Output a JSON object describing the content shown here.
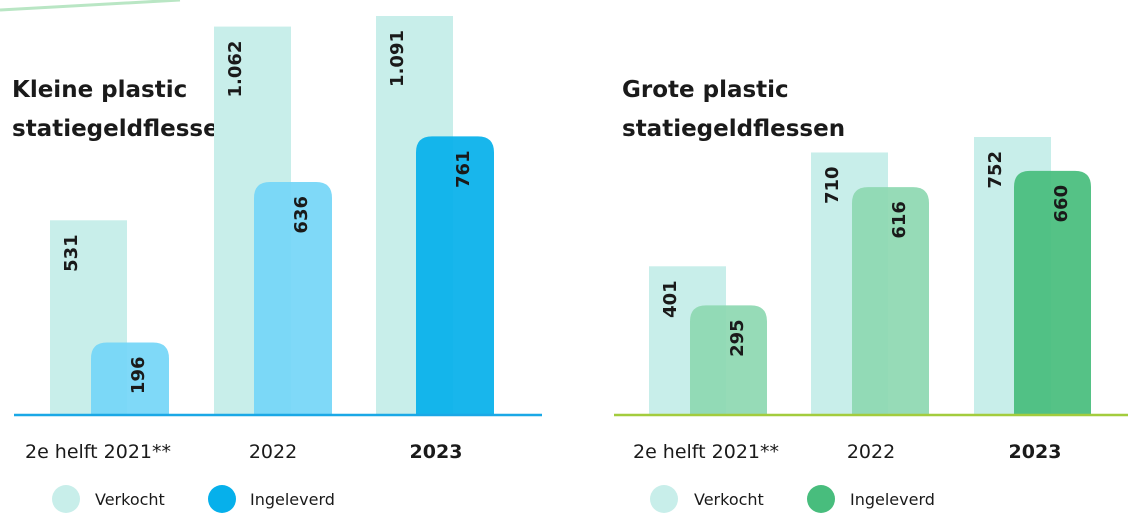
{
  "colors": {
    "background": "#ffffff",
    "verkocht": "#c8eeea",
    "left_ingeleverd_light": "#75d6f7",
    "left_ingeleverd_bold": "#06b0eb",
    "left_baseline": "#1aa8e6",
    "right_ingeleverd_light": "#8ed8b2",
    "right_ingeleverd_bold": "#48bd7d",
    "right_baseline": "#a3cc3d",
    "corner_arc": "#b9e6c4",
    "text": "#1a1a1a"
  },
  "chart_data": [
    {
      "type": "bar",
      "title": "Kleine plastic statiegeldflessen",
      "title_lines": [
        "Kleine plastic",
        "statiegeldflessen"
      ],
      "categories": [
        "2e helft 2021**",
        "2022",
        "2023"
      ],
      "highlight_category": "2023",
      "series": [
        {
          "name": "Verkocht",
          "values": [
            531,
            1062,
            1091
          ],
          "labels": [
            "531",
            "1.062",
            "1.091"
          ]
        },
        {
          "name": "Ingeleverd",
          "values": [
            196,
            636,
            761
          ],
          "labels": [
            "196",
            "636",
            "761"
          ]
        }
      ],
      "ylim": [
        0,
        1091
      ],
      "grid": false,
      "legend": {
        "position": "bottom",
        "entries": [
          "Verkocht",
          "Ingeleverd"
        ]
      }
    },
    {
      "type": "bar",
      "title": "Grote plastic statiegeldflessen",
      "title_lines": [
        "Grote plastic",
        "statiegeldflessen"
      ],
      "categories": [
        "2e helft 2021**",
        "2022",
        "2023"
      ],
      "highlight_category": "2023",
      "series": [
        {
          "name": "Verkocht",
          "values": [
            401,
            710,
            752
          ],
          "labels": [
            "401",
            "710",
            "752"
          ]
        },
        {
          "name": "Ingeleverd",
          "values": [
            295,
            616,
            660
          ],
          "labels": [
            "295",
            "616",
            "660"
          ]
        }
      ],
      "ylim": [
        0,
        752
      ],
      "grid": false,
      "legend": {
        "position": "bottom",
        "entries": [
          "Verkocht",
          "Ingeleverd"
        ]
      }
    }
  ]
}
